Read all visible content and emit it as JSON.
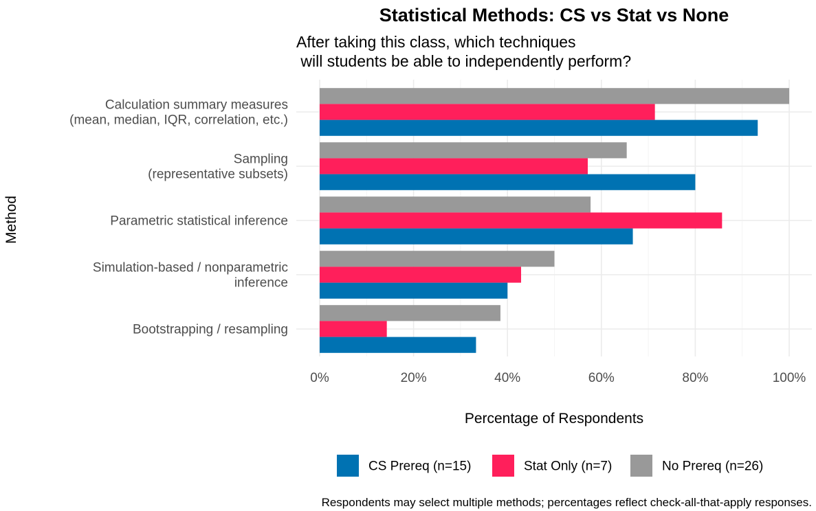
{
  "chart_data": {
    "type": "bar",
    "orientation": "horizontal",
    "title": "Statistical Methods: CS vs Stat vs None",
    "subtitle_lines": [
      "After taking this class, which techniques",
      " will students be able to independently perform?"
    ],
    "xlabel": "Percentage of Respondents",
    "ylabel": "Method",
    "caption": "Respondents may select multiple methods; percentages reflect check-all-that-apply responses.",
    "xlim": [
      0,
      100
    ],
    "x_ticks": [
      {
        "value": 0,
        "label": "0%"
      },
      {
        "value": 20,
        "label": "20%"
      },
      {
        "value": 40,
        "label": "40%"
      },
      {
        "value": 60,
        "label": "60%"
      },
      {
        "value": 80,
        "label": "80%"
      },
      {
        "value": 100,
        "label": "100%"
      }
    ],
    "grid": true,
    "legend_position": "bottom",
    "categories": [
      {
        "lines": [
          "Calculation summary measures",
          "(mean, median, IQR, correlation, etc.)"
        ]
      },
      {
        "lines": [
          "Sampling",
          "(representative subsets)"
        ]
      },
      {
        "lines": [
          "Parametric statistical inference"
        ]
      },
      {
        "lines": [
          "Simulation-based / nonparametric",
          "inference"
        ]
      },
      {
        "lines": [
          "Bootstrapping / resampling"
        ]
      }
    ],
    "series": [
      {
        "name": "No Prereq (n=26)",
        "color": "#999999",
        "values": [
          100,
          65.4,
          57.7,
          50.0,
          38.5
        ]
      },
      {
        "name": "Stat Only (n=7)",
        "color": "#FF1F5B",
        "values": [
          71.4,
          57.1,
          85.7,
          42.9,
          14.3
        ]
      },
      {
        "name": "CS Prereq (n=15)",
        "color": "#0072B2",
        "values": [
          93.3,
          80.0,
          66.7,
          40.0,
          33.3
        ]
      }
    ],
    "legend_order": [
      "CS Prereq (n=15)",
      "Stat Only (n=7)",
      "No Prereq (n=26)"
    ]
  }
}
